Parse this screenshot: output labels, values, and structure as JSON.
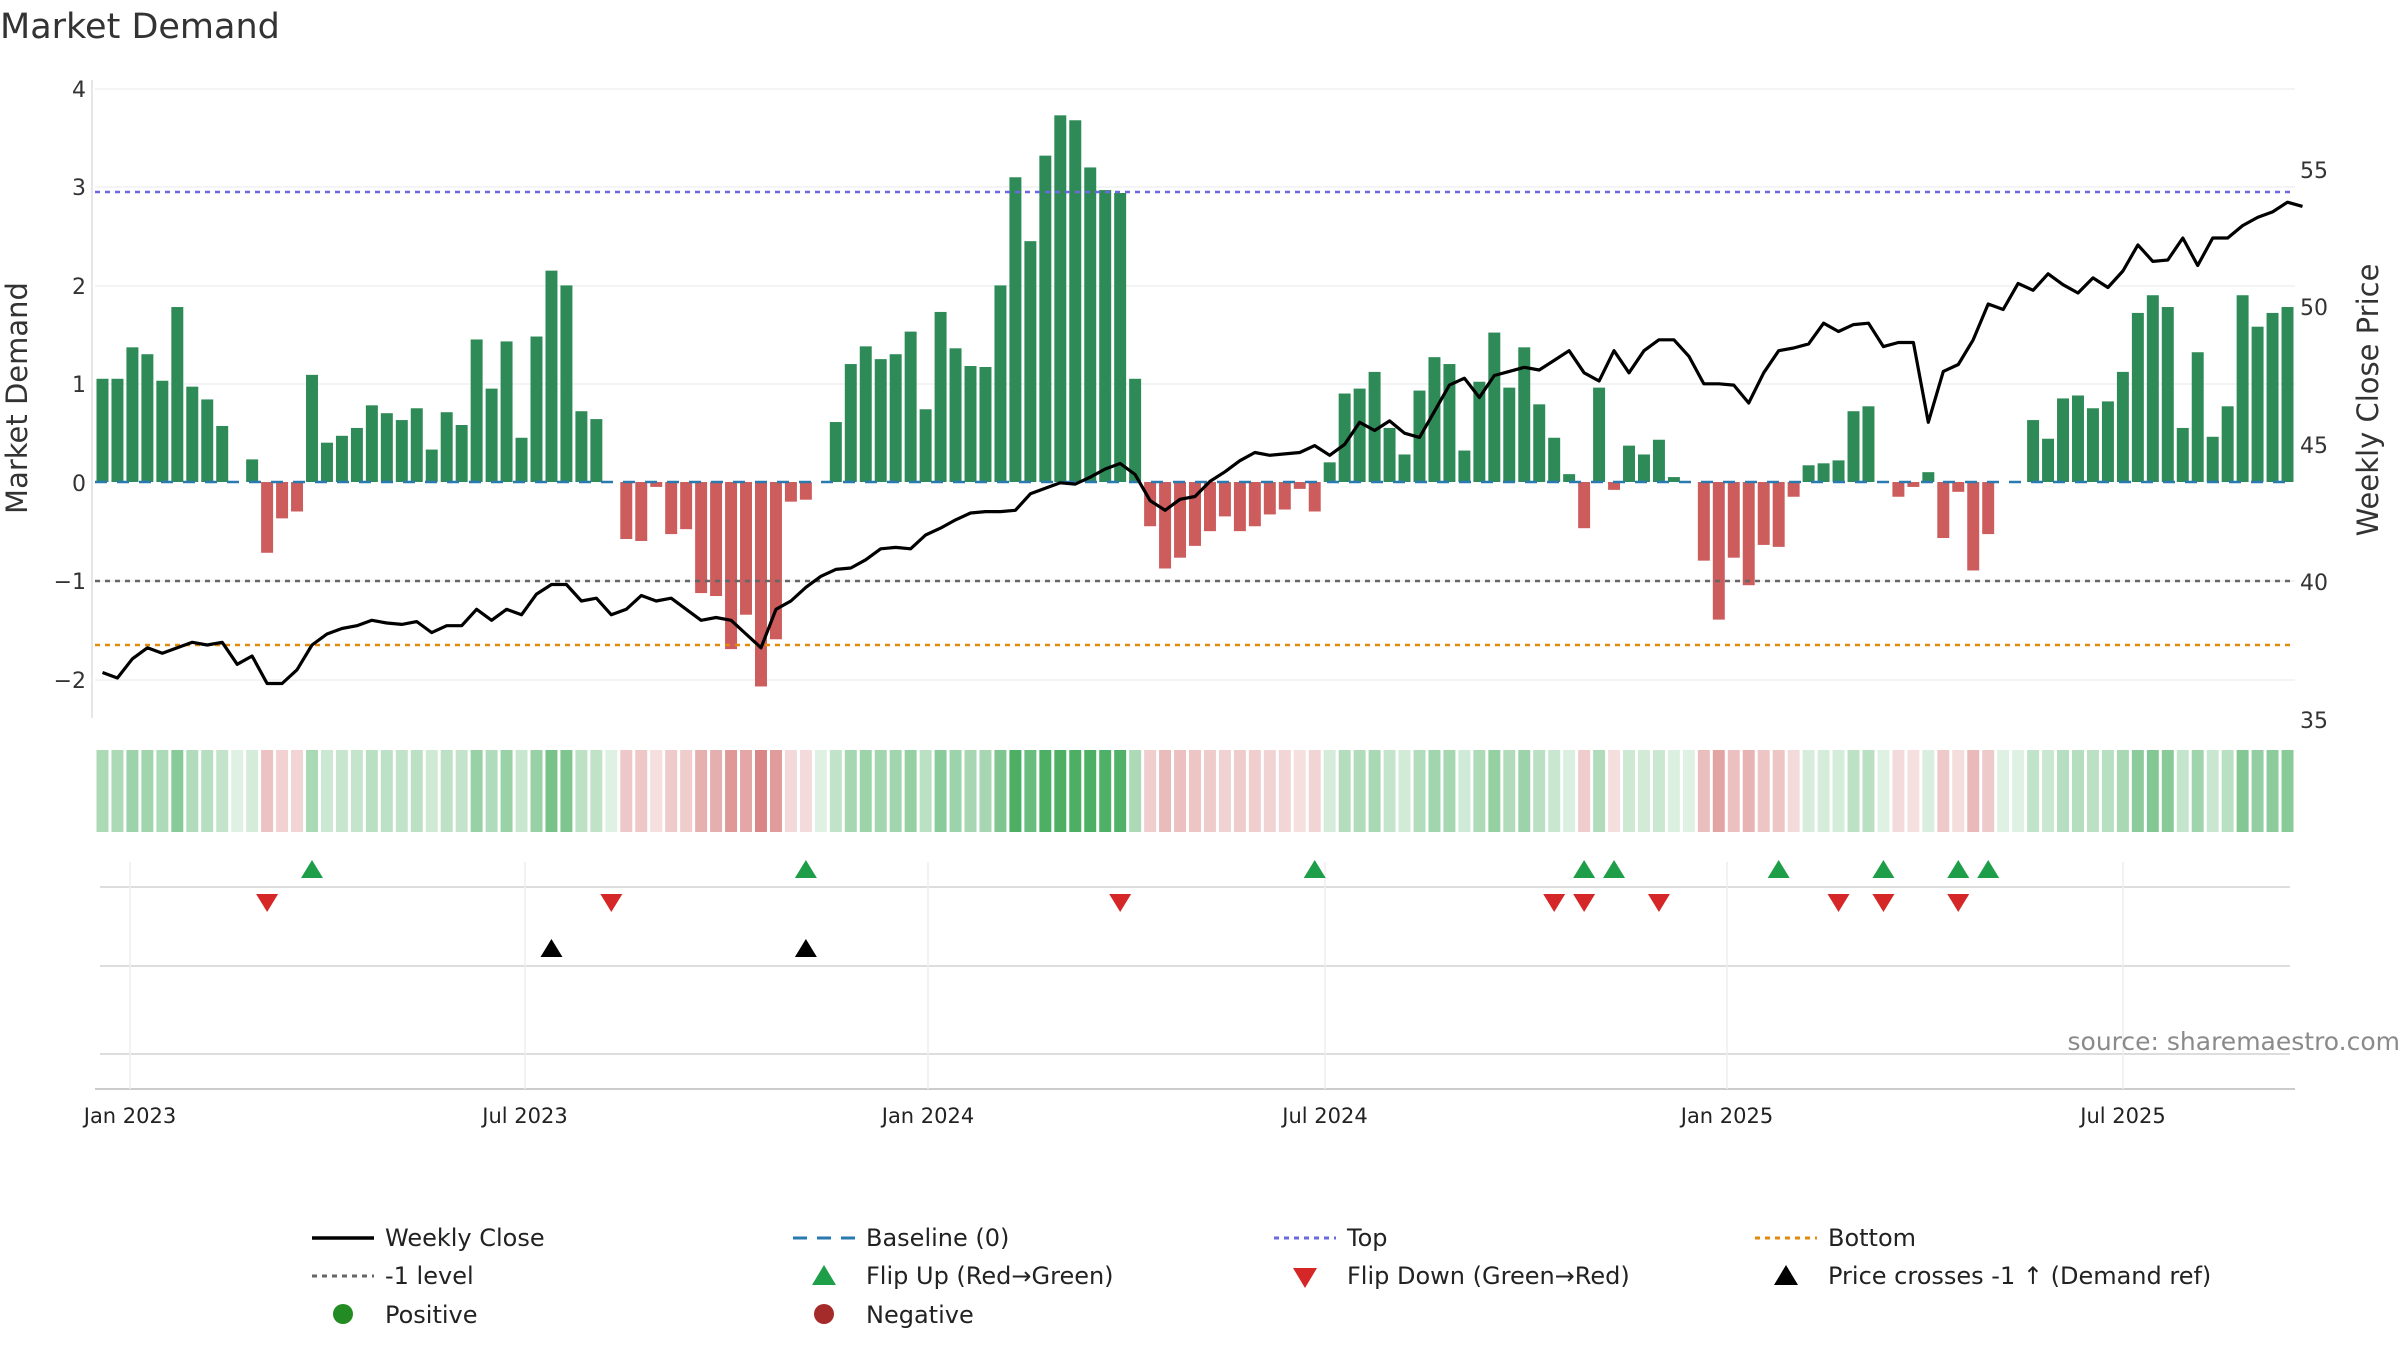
{
  "chart_data": {
    "type": "bar",
    "title": "Market Demand",
    "ylabel": "Market Demand",
    "y2label": "Weekly Close Price",
    "source": "source: sharemaestro.com",
    "ylim": [
      -2.35,
      4.1
    ],
    "y2lim": [
      35,
      57.5
    ],
    "yticks": [
      "4",
      "3",
      "2",
      "1",
      "0",
      "−1",
      "−2"
    ],
    "y2ticks": [
      "55",
      "50",
      "45",
      "40",
      "35"
    ],
    "xticks": [
      "Jan 2023",
      "Jul 2023",
      "Jan 2024",
      "Jul 2024",
      "Jan 2025",
      "Jul 2025"
    ],
    "x_start": "2022-12-30",
    "week_count": 145,
    "levels": {
      "top": 2.95,
      "minus_one": -1.0,
      "bottom": -1.65,
      "baseline": 0
    },
    "colors": {
      "positive": "#2e8b57",
      "negative": "#cd5c5c",
      "close": "#000000",
      "top": "#6a6adc",
      "bottom": "#e08a10",
      "minus_one": "#666666",
      "baseline": "#2a7ab0",
      "flip_up": "#1e9e48",
      "flip_down": "#d62728",
      "cross": "#000000"
    },
    "demand": [
      1.05,
      1.05,
      1.37,
      1.3,
      1.03,
      1.78,
      0.97,
      0.84,
      0.57,
      0,
      0.23,
      -0.72,
      -0.37,
      -0.3,
      1.09,
      0.4,
      0.47,
      0.55,
      0.78,
      0.7,
      0.63,
      0.75,
      0.33,
      0.71,
      0.58,
      1.45,
      0.95,
      1.43,
      0.45,
      1.48,
      2.15,
      2.0,
      0.72,
      0.64,
      0,
      -0.58,
      -0.6,
      -0.05,
      -0.53,
      -0.48,
      -1.13,
      -1.16,
      -1.7,
      -1.35,
      -2.08,
      -1.6,
      -0.2,
      -0.18,
      0,
      0.61,
      1.2,
      1.38,
      1.25,
      1.3,
      1.53,
      0.74,
      1.73,
      1.36,
      1.18,
      1.17,
      2.0,
      3.1,
      2.45,
      3.32,
      3.73,
      3.68,
      3.2,
      2.97,
      2.94,
      1.05,
      -0.45,
      -0.88,
      -0.77,
      -0.65,
      -0.5,
      -0.35,
      -0.5,
      -0.45,
      -0.33,
      -0.28,
      -0.07,
      -0.3,
      0.2,
      0.9,
      0.95,
      1.12,
      0.55,
      0.28,
      0.93,
      1.27,
      1.2,
      0.32,
      1.02,
      1.52,
      0.96,
      1.37,
      0.79,
      0.45,
      0.08,
      -0.47,
      0.96,
      -0.08,
      0.37,
      0.28,
      0.43,
      0.05,
      0,
      -0.8,
      -1.4,
      -0.77,
      -1.05,
      -0.64,
      -0.66,
      -0.15,
      0.17,
      0.19,
      0.22,
      0.72,
      0.77,
      0,
      -0.15,
      -0.05,
      0.1,
      -0.57,
      -0.1,
      -0.9,
      -0.53,
      0,
      0,
      0.63,
      0.44,
      0.85,
      0.88,
      0.75,
      0.82,
      1.12,
      1.72,
      1.9,
      1.78,
      0.55,
      1.32,
      0.46,
      0.77,
      1.9,
      1.58,
      1.72,
      1.78
    ],
    "close": [
      37.0,
      36.8,
      37.5,
      37.9,
      37.7,
      37.9,
      38.1,
      38.0,
      38.1,
      37.3,
      37.6,
      36.6,
      36.6,
      37.1,
      38.0,
      38.4,
      38.6,
      38.7,
      38.9,
      38.8,
      38.75,
      38.85,
      38.45,
      38.7,
      38.7,
      39.3,
      38.9,
      39.3,
      39.1,
      39.85,
      40.2,
      40.2,
      39.6,
      39.7,
      39.1,
      39.3,
      39.8,
      39.6,
      39.7,
      39.3,
      38.9,
      39.0,
      38.9,
      38.4,
      37.9,
      39.3,
      39.6,
      40.1,
      40.5,
      40.75,
      40.8,
      41.1,
      41.5,
      41.55,
      41.5,
      42.0,
      42.25,
      42.55,
      42.8,
      42.85,
      42.85,
      42.9,
      43.5,
      43.7,
      43.9,
      43.85,
      44.1,
      44.4,
      44.6,
      44.2,
      43.25,
      42.9,
      43.3,
      43.4,
      43.95,
      44.3,
      44.7,
      45.0,
      44.9,
      44.95,
      45.0,
      45.25,
      44.9,
      45.3,
      46.1,
      45.8,
      46.15,
      45.7,
      45.55,
      46.5,
      47.45,
      47.7,
      47.0,
      47.8,
      47.95,
      48.1,
      48.0,
      48.35,
      48.7,
      47.9,
      47.6,
      48.7,
      47.9,
      48.7,
      49.1,
      49.1,
      48.5,
      47.5,
      47.5,
      47.45,
      46.8,
      47.9,
      48.7,
      48.8,
      48.95,
      49.7,
      49.4,
      49.65,
      49.7,
      48.85,
      49.0,
      49.0,
      46.1,
      47.95,
      48.2,
      49.1,
      50.4,
      50.2,
      51.15,
      50.9,
      51.5,
      51.1,
      50.8,
      51.35,
      51.0,
      51.6,
      52.55,
      51.95,
      52.0,
      52.8,
      51.8,
      52.8,
      52.8,
      53.25,
      53.55,
      53.75,
      54.1,
      53.95
    ]
  },
  "events": {
    "flip_up": [
      14,
      47,
      81,
      99,
      101,
      112,
      119,
      124,
      126
    ],
    "flip_down": [
      11,
      34,
      68,
      97,
      99,
      104,
      116,
      119,
      124
    ],
    "cross_up": [
      30,
      47
    ]
  },
  "legend": {
    "weekly_close": "Weekly Close",
    "baseline": "Baseline (0)",
    "top": "Top",
    "bottom": "Bottom",
    "minus_one": "-1 level",
    "flip_up": "Flip Up (Red→Green)",
    "flip_down": "Flip Down (Green→Red)",
    "cross": "Price crosses -1 ↑ (Demand ref)",
    "positive": "Positive",
    "negative": "Negative"
  }
}
